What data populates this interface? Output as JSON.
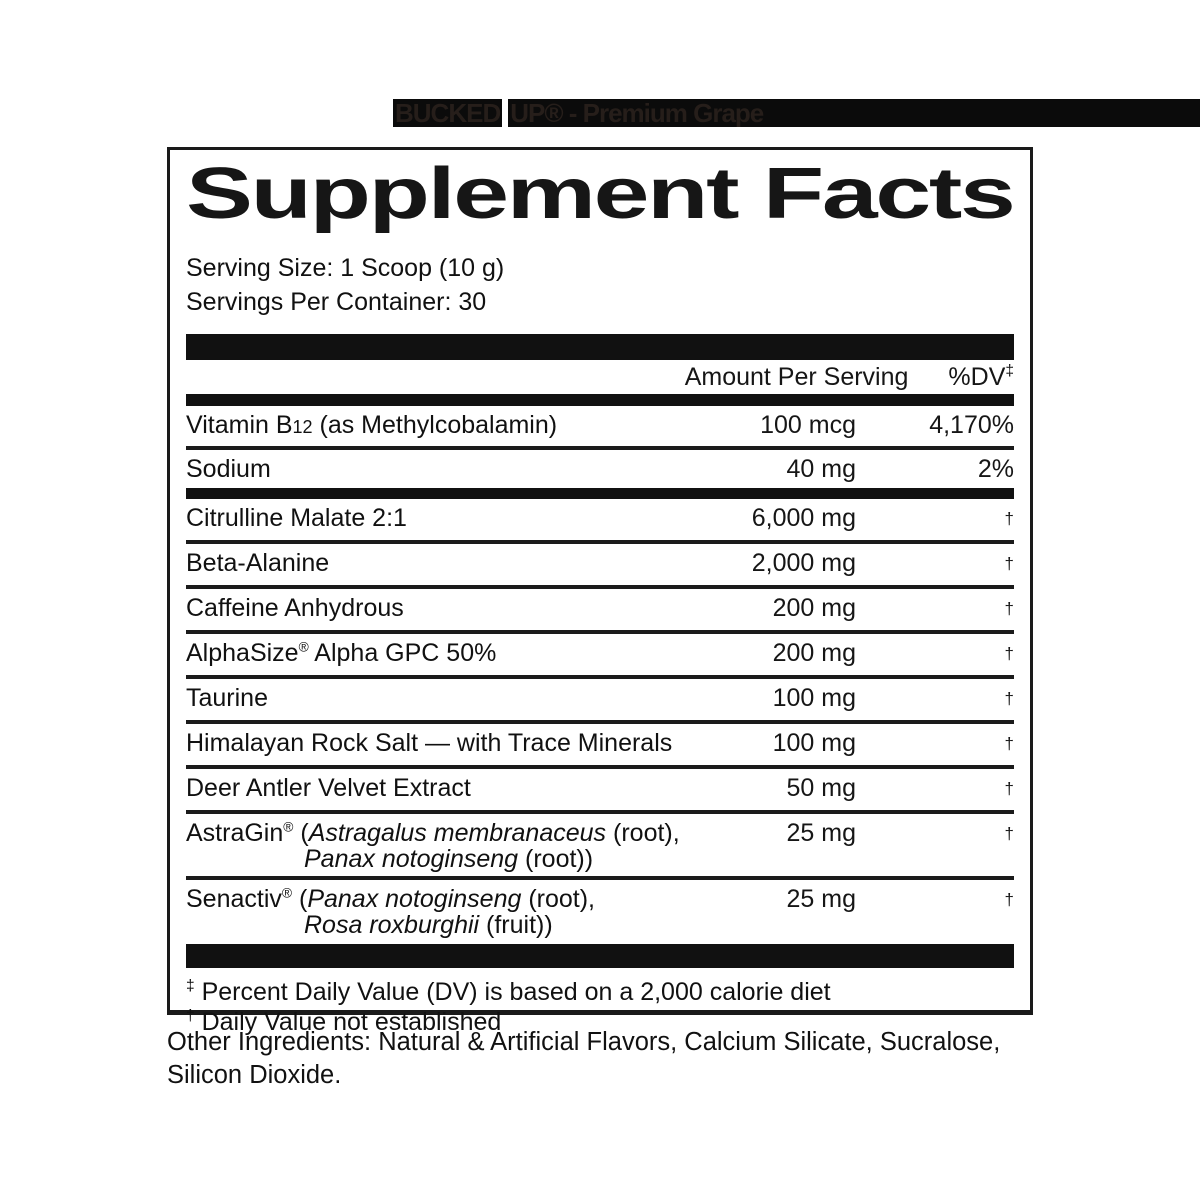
{
  "brand_bar": {
    "background": "#0b0b0b",
    "text_color": "#261e1a",
    "segment1": "BUCKED",
    "segment2": "UP® - Premium Grape"
  },
  "panel": {
    "title": "Supplement Facts",
    "serving_size": "Serving Size: 1 Scoop (10 g)",
    "servings_per_container": "Servings Per Container: 30",
    "header": {
      "amount": "Amount Per Serving",
      "dv": "%DV",
      "dv_symbol": "‡"
    },
    "rows": [
      {
        "pre": "Vitamin B",
        "sub": "12",
        "post": " (as Methylcobalamin)",
        "amount": "100 mcg",
        "dv": "4,170%"
      },
      {
        "pre": "Sodium",
        "amount": "40 mg",
        "dv": "2%"
      },
      {
        "pre": "Citrulline Malate 2:1",
        "amount": "6,000 mg",
        "dagger": "†"
      },
      {
        "pre": "Beta-Alanine",
        "amount": "2,000 mg",
        "dagger": "†"
      },
      {
        "pre": "Caffeine Anhydrous",
        "amount": "200 mg",
        "dagger": "†"
      },
      {
        "pre": "AlphaSize",
        "reg": "®",
        "post": " Alpha GPC 50%",
        "amount": "200 mg",
        "dagger": "†"
      },
      {
        "pre": "Taurine",
        "amount": "100 mg",
        "dagger": "†"
      },
      {
        "pre": "Himalayan Rock Salt — with Trace Minerals",
        "amount": "100 mg",
        "dagger": "†"
      },
      {
        "pre": "Deer Antler Velvet Extract",
        "amount": "50 mg",
        "dagger": "†"
      },
      {
        "pre": "AstraGin",
        "reg": "®",
        "post": " (",
        "italic1": "Astragalus membranaceus",
        "post2": " (root),",
        "line2_italic": "Panax notoginseng",
        "line2_post": " (root))",
        "amount": "25 mg",
        "dagger": "†"
      },
      {
        "pre": "Senactiv",
        "reg": "®",
        "post": " (",
        "italic1": "Panax notoginseng",
        "post2": " (root),",
        "line2_italic": "Rosa roxburghii",
        "line2_post": " (fruit))",
        "amount": "25 mg",
        "dagger": "†"
      }
    ],
    "footnotes": {
      "dv_symbol": "‡",
      "dv_text": " Percent Daily Value (DV) is based on a 2,000 calorie diet",
      "dagger_symbol": "†",
      "dagger_text": " Daily Value not established"
    }
  },
  "other_ingredients": "Other Ingredients: Natural & Artificial Flavors, Calcium Silicate, Sucralose, Silicon Dioxide."
}
